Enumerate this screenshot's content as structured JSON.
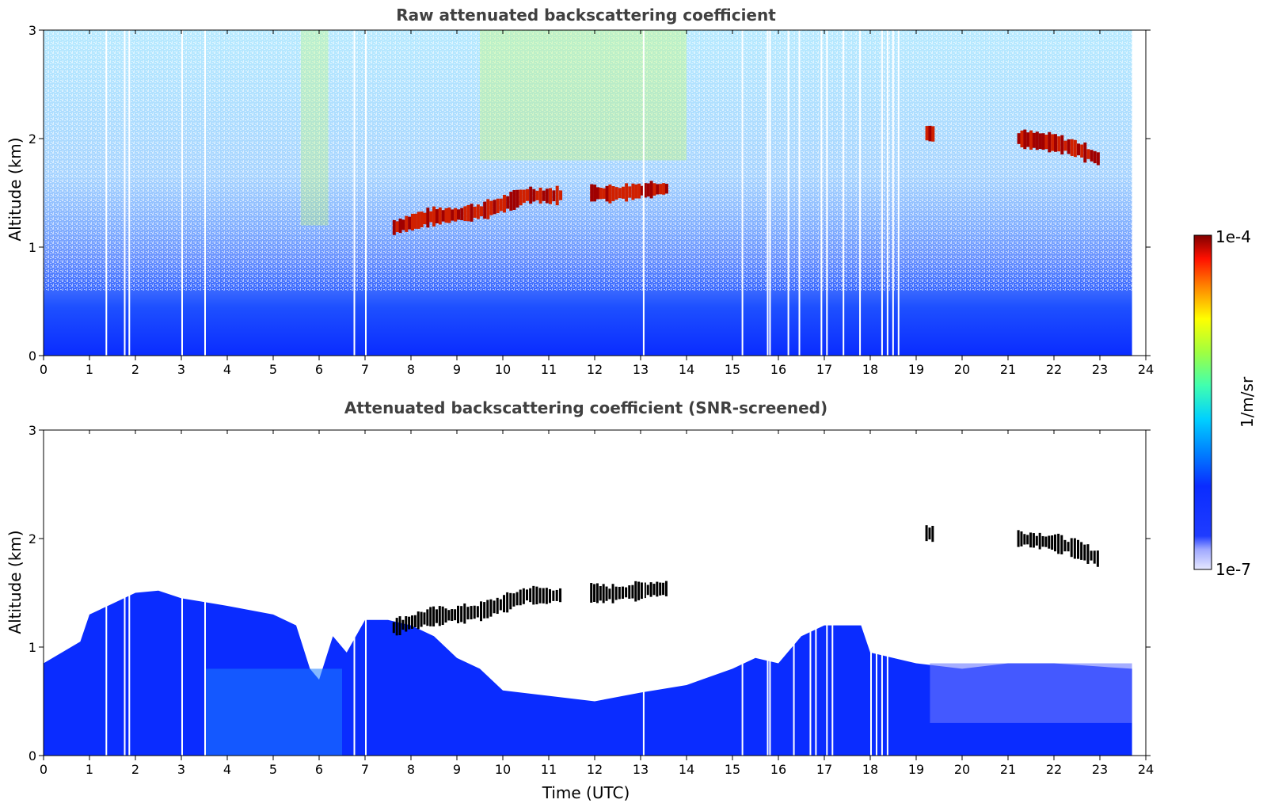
{
  "chart_data": [
    {
      "type": "heatmap",
      "title": "Raw attenuated backscattering coefficient",
      "xlabel": "",
      "ylabel": "Altitude (km)",
      "xlim": [
        0,
        24
      ],
      "ylim": [
        0,
        3
      ],
      "x_ticks": [
        "0",
        "1",
        "2",
        "3",
        "4",
        "5",
        "6",
        "7",
        "8",
        "9",
        "10",
        "11",
        "12",
        "13",
        "14",
        "15",
        "16",
        "17",
        "18",
        "19",
        "20",
        "21",
        "22",
        "23",
        "24"
      ],
      "y_ticks": [
        "0",
        "1",
        "2",
        "3"
      ],
      "data_end_hour": 23.7,
      "cloud_layers": [
        {
          "name": "mid-level cloud 1",
          "points": [
            [
              7.6,
              1.18
            ],
            [
              8.0,
              1.23
            ],
            [
              8.4,
              1.28
            ],
            [
              9.0,
              1.3
            ],
            [
              9.5,
              1.33
            ],
            [
              10.0,
              1.4
            ],
            [
              10.5,
              1.48
            ],
            [
              11.0,
              1.47
            ],
            [
              11.3,
              1.48
            ]
          ]
        },
        {
          "name": "mid-level cloud 2",
          "points": [
            [
              11.9,
              1.5
            ],
            [
              12.3,
              1.49
            ],
            [
              12.8,
              1.51
            ],
            [
              13.2,
              1.53
            ],
            [
              13.6,
              1.54
            ]
          ]
        },
        {
          "name": "small cloud 19h",
          "points": [
            [
              19.2,
              2.05
            ],
            [
              19.4,
              2.04
            ]
          ]
        },
        {
          "name": "upper cloud",
          "points": [
            [
              21.2,
              2.0
            ],
            [
              21.6,
              1.98
            ],
            [
              22.0,
              1.96
            ],
            [
              22.5,
              1.9
            ],
            [
              23.0,
              1.8
            ]
          ]
        }
      ],
      "gaps_hours": [
        1.35,
        1.75,
        1.85,
        3.0,
        3.5,
        6.75,
        7.0,
        13.05,
        15.2,
        15.75,
        15.8
      ]
    },
    {
      "type": "heatmap",
      "title": "Attenuated backscattering coefficient (SNR-screened)",
      "xlabel": "Time (UTC)",
      "ylabel": "Altitude (km)",
      "xlim": [
        0,
        24
      ],
      "ylim": [
        0,
        3
      ],
      "x_ticks": [
        "0",
        "1",
        "2",
        "3",
        "4",
        "5",
        "6",
        "7",
        "8",
        "9",
        "10",
        "11",
        "12",
        "13",
        "14",
        "15",
        "16",
        "17",
        "18",
        "19",
        "20",
        "21",
        "22",
        "23",
        "24"
      ],
      "y_ticks": [
        "0",
        "1",
        "2",
        "3"
      ],
      "data_end_hour": 23.7,
      "boundary_layer_top": [
        [
          0,
          0.85
        ],
        [
          0.8,
          1.05
        ],
        [
          1.0,
          1.3
        ],
        [
          1.5,
          1.4
        ],
        [
          2.0,
          1.5
        ],
        [
          2.5,
          1.52
        ],
        [
          3.0,
          1.45
        ],
        [
          4.0,
          1.38
        ],
        [
          5.0,
          1.3
        ],
        [
          5.5,
          1.2
        ],
        [
          5.8,
          0.8
        ],
        [
          6.0,
          0.7
        ],
        [
          6.3,
          1.1
        ],
        [
          6.6,
          0.95
        ],
        [
          7.0,
          1.25
        ],
        [
          7.5,
          1.25
        ],
        [
          8.0,
          1.2
        ],
        [
          8.5,
          1.1
        ],
        [
          9.0,
          0.9
        ],
        [
          9.5,
          0.8
        ],
        [
          10.0,
          0.6
        ],
        [
          11.0,
          0.55
        ],
        [
          12.0,
          0.5
        ],
        [
          13.0,
          0.58
        ],
        [
          14.0,
          0.65
        ],
        [
          15.0,
          0.8
        ],
        [
          15.5,
          0.9
        ],
        [
          16.0,
          0.85
        ],
        [
          16.5,
          1.1
        ],
        [
          17.0,
          1.2
        ],
        [
          17.8,
          1.2
        ],
        [
          18.0,
          0.95
        ],
        [
          19.0,
          0.85
        ],
        [
          20.0,
          0.8
        ],
        [
          21.0,
          0.85
        ],
        [
          22.0,
          0.85
        ],
        [
          23.0,
          0.82
        ],
        [
          23.7,
          0.8
        ]
      ]
    }
  ],
  "colorbar": {
    "label": "1/m/sr",
    "max_label": "1e-4",
    "min_label": "1e-7",
    "scale": "log",
    "range": [
      1e-07,
      0.0001
    ]
  },
  "colors": {
    "low": "#0a2cff",
    "mid": "#00c8ff",
    "high_mid": "#ffff00",
    "high": "#800000"
  }
}
